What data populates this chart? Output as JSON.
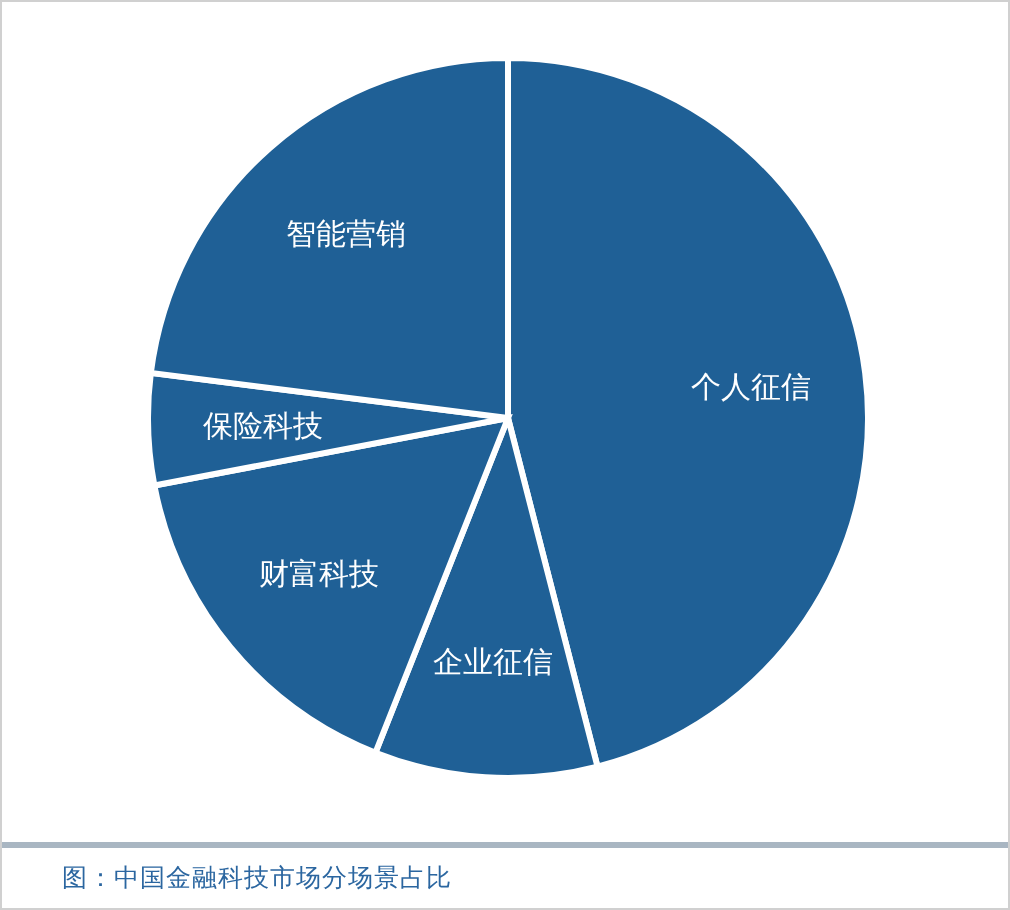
{
  "chart_data": {
    "type": "pie",
    "categories": [
      "个人征信",
      "企业征信",
      "财富科技",
      "保险科技",
      "智能营销"
    ],
    "values": [
      46,
      10,
      16,
      5,
      23
    ],
    "colors": [
      "#1f6096",
      "#1f6096",
      "#1f6096",
      "#1f6096",
      "#1f6096"
    ],
    "annotations": [
      "图：中国金融科技市场分场景占比"
    ]
  }
}
